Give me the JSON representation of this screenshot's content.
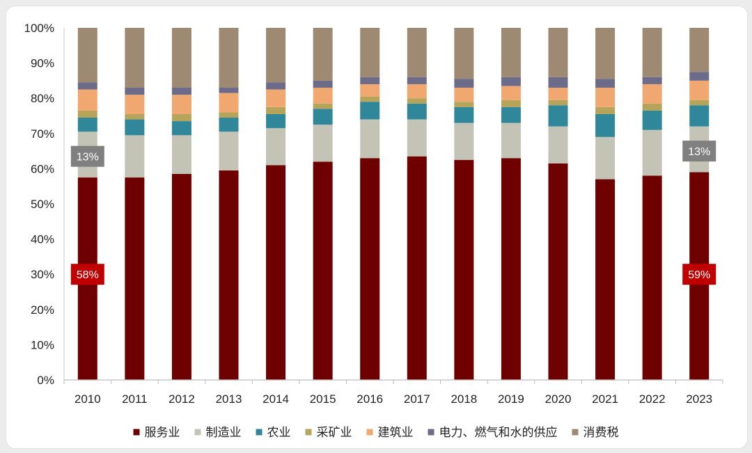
{
  "chart_data": {
    "type": "bar",
    "stacked": true,
    "categories": [
      "2010",
      "2011",
      "2012",
      "2013",
      "2014",
      "2015",
      "2016",
      "2017",
      "2018",
      "2019",
      "2020",
      "2021",
      "2022",
      "2023"
    ],
    "series": [
      {
        "name": "服务业",
        "color": "#6e0000",
        "values": [
          57.5,
          57.5,
          58.5,
          59.5,
          61,
          62,
          63,
          63.5,
          62.5,
          63,
          61.5,
          57,
          58,
          59
        ]
      },
      {
        "name": "制造业",
        "color": "#c4c4b6",
        "values": [
          13,
          12,
          11,
          11,
          10.5,
          10.5,
          11,
          10.5,
          10.5,
          10,
          10.5,
          12,
          13,
          13
        ]
      },
      {
        "name": "农业",
        "color": "#31879a",
        "values": [
          4,
          4.5,
          4,
          4,
          4,
          4.5,
          5,
          4.5,
          4.5,
          4.5,
          6,
          6.5,
          5.5,
          6
        ]
      },
      {
        "name": "采矿业",
        "color": "#b5a45a",
        "values": [
          2,
          1.5,
          2,
          1.5,
          2,
          1.5,
          1.5,
          1.5,
          1.5,
          2,
          1.5,
          2,
          2,
          1.5
        ]
      },
      {
        "name": "建筑业",
        "color": "#f0a770",
        "values": [
          6,
          5.5,
          5.5,
          5.5,
          5,
          4.5,
          3.5,
          4,
          4,
          4,
          3.5,
          5.5,
          5.5,
          5.5
        ]
      },
      {
        "name": "电力、燃气和水的供应",
        "color": "#6c6c8a",
        "values": [
          2,
          2,
          2,
          1.5,
          2,
          2,
          2,
          2,
          2.5,
          2.5,
          3,
          2.5,
          2,
          2.5
        ]
      },
      {
        "name": "消费税",
        "color": "#9e8a72",
        "values": [
          15.5,
          17,
          17,
          17,
          15.5,
          15,
          14,
          14,
          14.5,
          14,
          14,
          14.5,
          14,
          12.5
        ]
      }
    ],
    "ylim": [
      0,
      100
    ],
    "yticks": [
      "0%",
      "10%",
      "20%",
      "30%",
      "40%",
      "50%",
      "60%",
      "70%",
      "80%",
      "90%",
      "100%"
    ],
    "legend_position": "bottom",
    "annotations": [
      {
        "category": "2010",
        "series": "服务业",
        "text": "58%",
        "bg": "#c00000",
        "fg": "#ffffff",
        "at_value": 30
      },
      {
        "category": "2010",
        "series": "制造业",
        "text": "13%",
        "bg": "#808080",
        "fg": "#ffffff",
        "at_value": 63.5
      },
      {
        "category": "2023",
        "series": "服务业",
        "text": "59%",
        "bg": "#c00000",
        "fg": "#ffffff",
        "at_value": 30
      },
      {
        "category": "2023",
        "series": "制造业",
        "text": "13%",
        "bg": "#808080",
        "fg": "#ffffff",
        "at_value": 65
      }
    ]
  }
}
